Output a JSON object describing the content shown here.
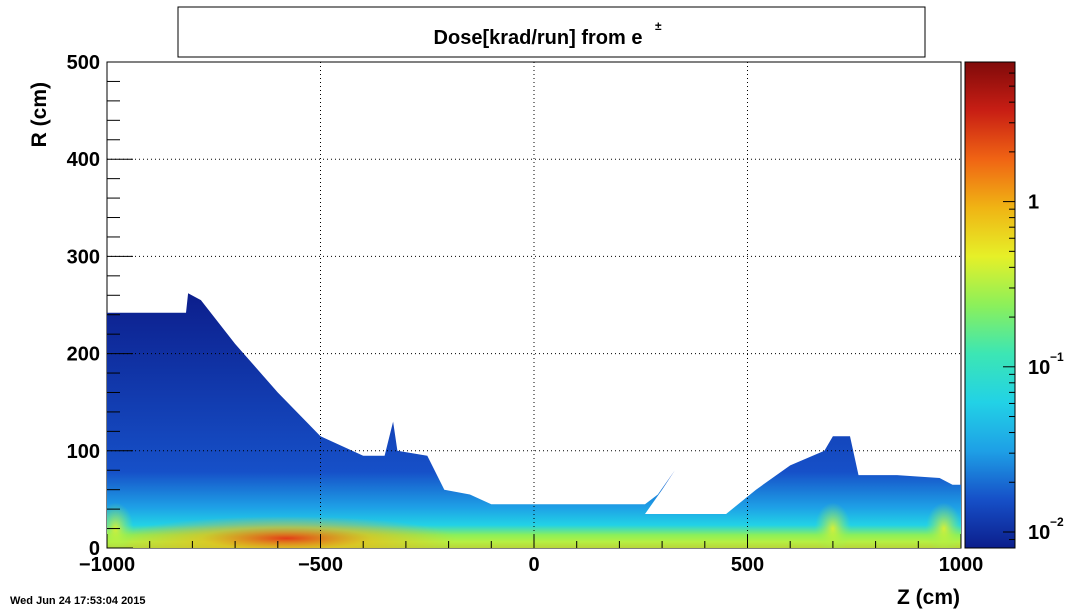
{
  "chart_data": {
    "type": "heatmap",
    "title": "Dose[krad/run] from e",
    "title_superscript": "±",
    "xlabel": "Z (cm)",
    "ylabel": "R (cm)",
    "xlim": [
      -1000,
      1000
    ],
    "ylim": [
      0,
      500
    ],
    "x_ticks": [
      -1000,
      -500,
      0,
      500,
      1000
    ],
    "x_tick_labels": [
      "−1000",
      "−500",
      "0",
      "500",
      "1000"
    ],
    "y_ticks": [
      0,
      100,
      200,
      300,
      400,
      500
    ],
    "y_tick_labels": [
      "0",
      "100",
      "200",
      "300",
      "400",
      "500"
    ],
    "grid": true,
    "colorbar": {
      "scale": "log",
      "range": [
        0.008,
        7
      ],
      "ticks": [
        {
          "value": 1,
          "base": "1",
          "exp": ""
        },
        {
          "value": 0.1,
          "base": "10",
          "exp": "−1"
        },
        {
          "value": 0.01,
          "base": "10",
          "exp": "−2"
        }
      ],
      "colors": [
        "#0c1e8c",
        "#1650c8",
        "#1ea0e6",
        "#22d2e6",
        "#3ce6b4",
        "#8cf05a",
        "#e6f028",
        "#f0b414",
        "#f06414",
        "#c81e14",
        "#800a0a"
      ]
    },
    "boundary": [
      [
        -1000,
        242
      ],
      [
        -815,
        242
      ],
      [
        -810,
        262
      ],
      [
        -780,
        255
      ],
      [
        -700,
        210
      ],
      [
        -600,
        160
      ],
      [
        -500,
        115
      ],
      [
        -400,
        95
      ],
      [
        -350,
        95
      ],
      [
        -330,
        130
      ],
      [
        -320,
        100
      ],
      [
        -250,
        95
      ],
      [
        -210,
        60
      ],
      [
        -150,
        55
      ],
      [
        -100,
        45
      ],
      [
        0,
        45
      ],
      [
        100,
        45
      ],
      [
        200,
        45
      ],
      [
        260,
        45
      ],
      [
        290,
        55
      ],
      [
        330,
        80
      ],
      [
        300,
        60
      ],
      [
        260,
        35
      ],
      [
        350,
        35
      ],
      [
        450,
        35
      ],
      [
        520,
        60
      ],
      [
        600,
        85
      ],
      [
        680,
        100
      ],
      [
        700,
        115
      ],
      [
        740,
        115
      ],
      [
        760,
        75
      ],
      [
        850,
        75
      ],
      [
        950,
        72
      ],
      [
        980,
        65
      ],
      [
        1000,
        65
      ]
    ],
    "hotspots": [
      {
        "z": -580,
        "r": 10,
        "value": 3.0
      },
      {
        "z": -980,
        "r": 20,
        "value": 0.8
      },
      {
        "z": 700,
        "r": 20,
        "value": 0.5
      },
      {
        "z": 960,
        "r": 20,
        "value": 0.4
      }
    ]
  },
  "footer": {
    "timestamp": "Wed Jun 24 17:53:04 2015"
  }
}
